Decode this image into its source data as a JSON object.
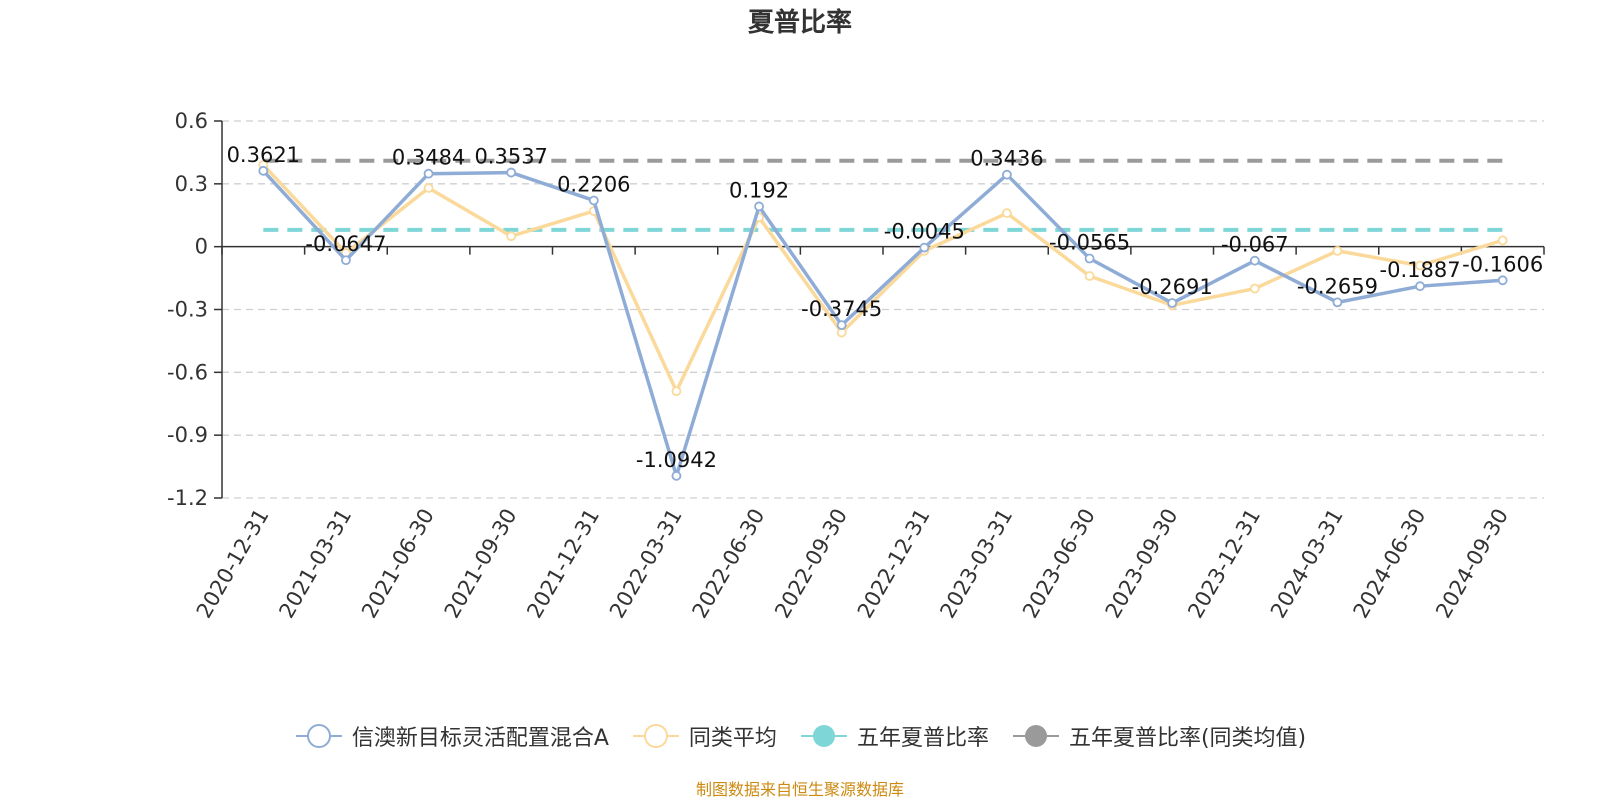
{
  "chart_data": {
    "type": "line",
    "title": "夏普比率",
    "categories": [
      "2020-12-31",
      "2021-03-31",
      "2021-06-30",
      "2021-09-30",
      "2021-12-31",
      "2022-03-31",
      "2022-06-30",
      "2022-09-30",
      "2022-12-31",
      "2023-03-31",
      "2023-06-30",
      "2023-09-30",
      "2023-12-31",
      "2024-03-31",
      "2024-06-30",
      "2024-09-30"
    ],
    "series": [
      {
        "name": "信澳新目标灵活配置混合A",
        "color": "#8eacd6",
        "values": [
          0.3621,
          -0.0647,
          0.3484,
          0.3537,
          0.2206,
          -1.0942,
          0.192,
          -0.3745,
          -0.0045,
          0.3436,
          -0.0565,
          -0.2691,
          -0.067,
          -0.2659,
          -0.1887,
          -0.1606
        ],
        "labels": [
          "0.3621",
          "-0.0647",
          "0.3484",
          "0.3537",
          "0.2206",
          "-1.0942",
          "0.192",
          "-0.3745",
          "-0.0045",
          "0.3436",
          "-0.0565",
          "-0.2691",
          "-0.067",
          "-0.2659",
          "-0.1887",
          "-0.1606"
        ]
      },
      {
        "name": "同类平均",
        "color": "#fad99a",
        "values": [
          0.39,
          -0.03,
          0.28,
          0.05,
          0.17,
          -0.69,
          0.14,
          -0.41,
          -0.02,
          0.16,
          -0.14,
          -0.28,
          -0.2,
          -0.02,
          -0.09,
          0.03
        ]
      },
      {
        "name": "五年夏普比率",
        "color": "#7fd6d6",
        "value": 0.08,
        "style": "dashed"
      },
      {
        "name": "五年夏普比率(同类均值)",
        "color": "#9a9a9a",
        "value": 0.41,
        "style": "dashed"
      }
    ],
    "ylim": [
      -1.2,
      0.6
    ],
    "yticks": [
      "0.6",
      "0.3",
      "0",
      "-0.3",
      "-0.6",
      "-0.9",
      "-1.2"
    ],
    "grid": true,
    "legend": "bottom"
  },
  "footer": "制图数据来自恒生聚源数据库"
}
